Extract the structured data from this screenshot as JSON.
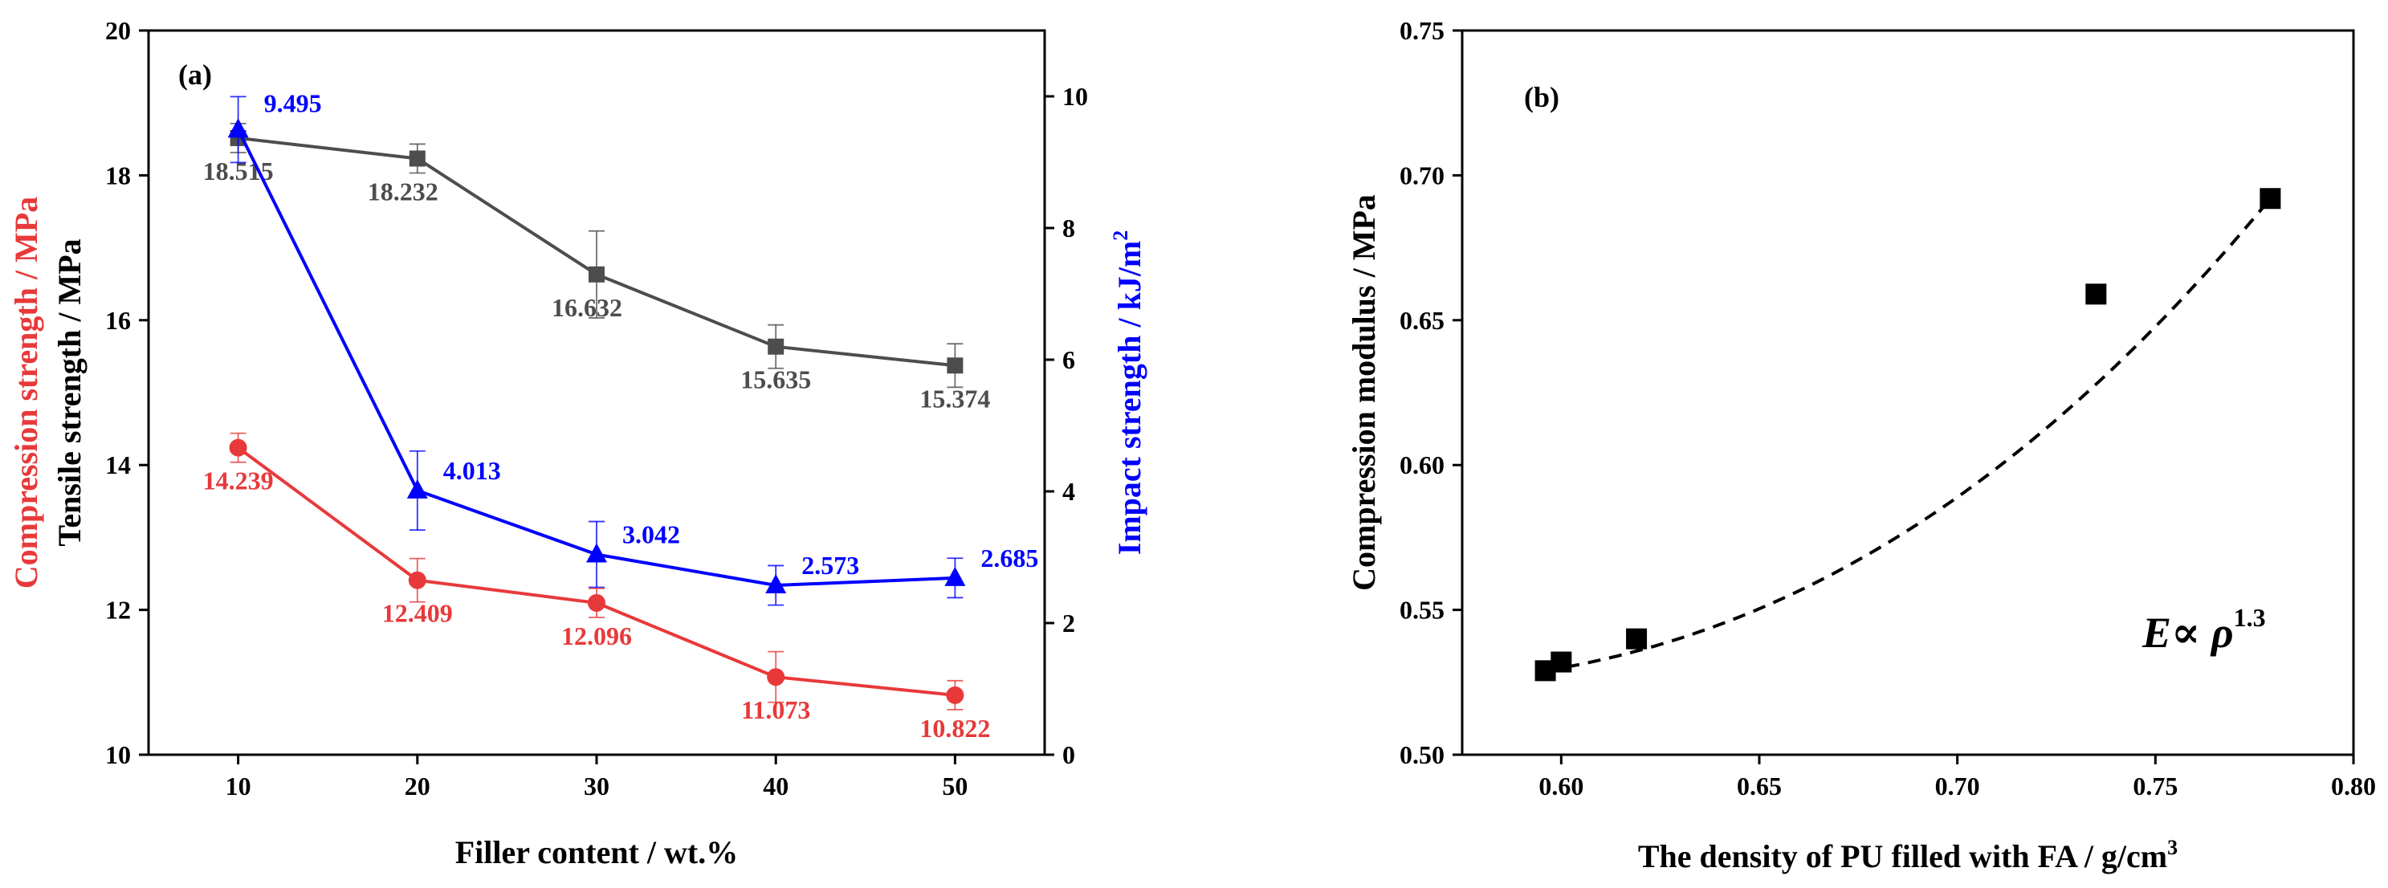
{
  "chart_data": [
    {
      "type": "line",
      "panel_label": "(a)",
      "xlabel": "Filler content / wt.%",
      "x": [
        10,
        20,
        30,
        40,
        50
      ],
      "x_ticks": [
        "10",
        "20",
        "30",
        "40",
        "50"
      ],
      "xlim": [
        5,
        55
      ],
      "left_axis": {
        "label_red": "Compression strength / MPa",
        "label_dark": "Tensile strength / MPa",
        "ylim": [
          10,
          20
        ],
        "ticks": [
          "10",
          "12",
          "14",
          "16",
          "18",
          "20"
        ]
      },
      "right_axis": {
        "label": "Impact strength / kJ/m",
        "label_sup": "2",
        "ylim": [
          0,
          11
        ],
        "ticks": [
          "0",
          "2",
          "4",
          "6",
          "8",
          "10"
        ]
      },
      "series": [
        {
          "name": "Tensile strength",
          "axis": "left",
          "color": "#4d4d4d",
          "marker": "square",
          "values": [
            18.515,
            18.232,
            16.632,
            15.635,
            15.374
          ],
          "labels": [
            "18.515",
            "18.232",
            "16.632",
            "15.635",
            "15.374"
          ],
          "errors": [
            0.2,
            0.2,
            0.6,
            0.3,
            0.3
          ]
        },
        {
          "name": "Impact strength",
          "axis": "right",
          "color": "#0000ff",
          "marker": "triangle",
          "values": [
            9.495,
            4.013,
            3.042,
            2.573,
            2.685
          ],
          "labels": [
            "9.495",
            "4.013",
            "3.042",
            "2.573",
            "2.685"
          ],
          "errors": [
            0.5,
            0.6,
            0.5,
            0.3,
            0.3
          ]
        },
        {
          "name": "Compression strength",
          "axis": "left",
          "color": "#e8393a",
          "marker": "circle",
          "values": [
            14.239,
            12.409,
            12.096,
            11.073,
            10.822
          ],
          "labels": [
            "14.239",
            "12.409",
            "12.096",
            "11.073",
            "10.822"
          ],
          "errors": [
            0.2,
            0.3,
            0.2,
            0.35,
            0.2
          ]
        }
      ]
    },
    {
      "type": "scatter",
      "panel_label": "(b)",
      "xlabel": "The density of PU filled with FA / g/cm",
      "xlabel_sup": "3",
      "ylabel": "Compression modulus / MPa",
      "xlim": [
        0.575,
        0.8
      ],
      "ylim": [
        0.5,
        0.75
      ],
      "x_ticks": [
        "0.60",
        "0.65",
        "0.70",
        "0.75",
        "0.80"
      ],
      "y_ticks": [
        "0.50",
        "0.55",
        "0.60",
        "0.65",
        "0.70",
        "0.75"
      ],
      "points": {
        "x": [
          0.596,
          0.6,
          0.619,
          0.735,
          0.779
        ],
        "y": [
          0.529,
          0.532,
          0.54,
          0.659,
          0.692
        ]
      },
      "fit": {
        "style": "dashed",
        "exponent": 1.3,
        "x_range": [
          0.596,
          0.779
        ]
      },
      "annotation": {
        "text_E": "E",
        "text_prop": "∝ ρ",
        "text_exp": "1.3"
      }
    }
  ]
}
